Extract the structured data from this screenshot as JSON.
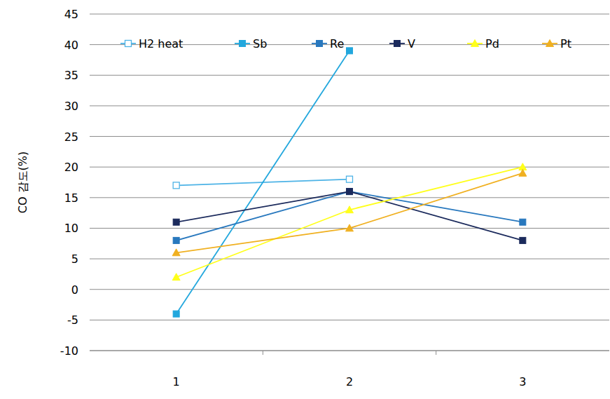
{
  "chart_data": {
    "type": "line",
    "y_label": "CO 감도(%)",
    "categories": [
      "1",
      "2",
      "3"
    ],
    "series": [
      {
        "name": "H2 heat",
        "color": "#4db3e6",
        "marker": "open-square",
        "values": [
          17,
          18,
          null
        ]
      },
      {
        "name": "Sb",
        "color": "#22a7dd",
        "marker": "square",
        "values": [
          -4,
          39,
          null
        ]
      },
      {
        "name": "Re",
        "color": "#2878be",
        "marker": "square",
        "values": [
          8,
          16,
          11
        ]
      },
      {
        "name": "V",
        "color": "#1b2a5c",
        "marker": "square",
        "values": [
          11,
          16,
          8
        ]
      },
      {
        "name": "Pd",
        "color": "#ffff1a",
        "marker": "triangle",
        "values": [
          2,
          13,
          20
        ]
      },
      {
        "name": "Pt",
        "color": "#f0b020",
        "marker": "triangle",
        "values": [
          6,
          10,
          19
        ]
      }
    ],
    "ylim": [
      -10,
      45
    ],
    "yticks": [
      -10,
      -5,
      0,
      5,
      10,
      15,
      20,
      25,
      30,
      35,
      40,
      45
    ],
    "grid": true,
    "legend": "top"
  }
}
